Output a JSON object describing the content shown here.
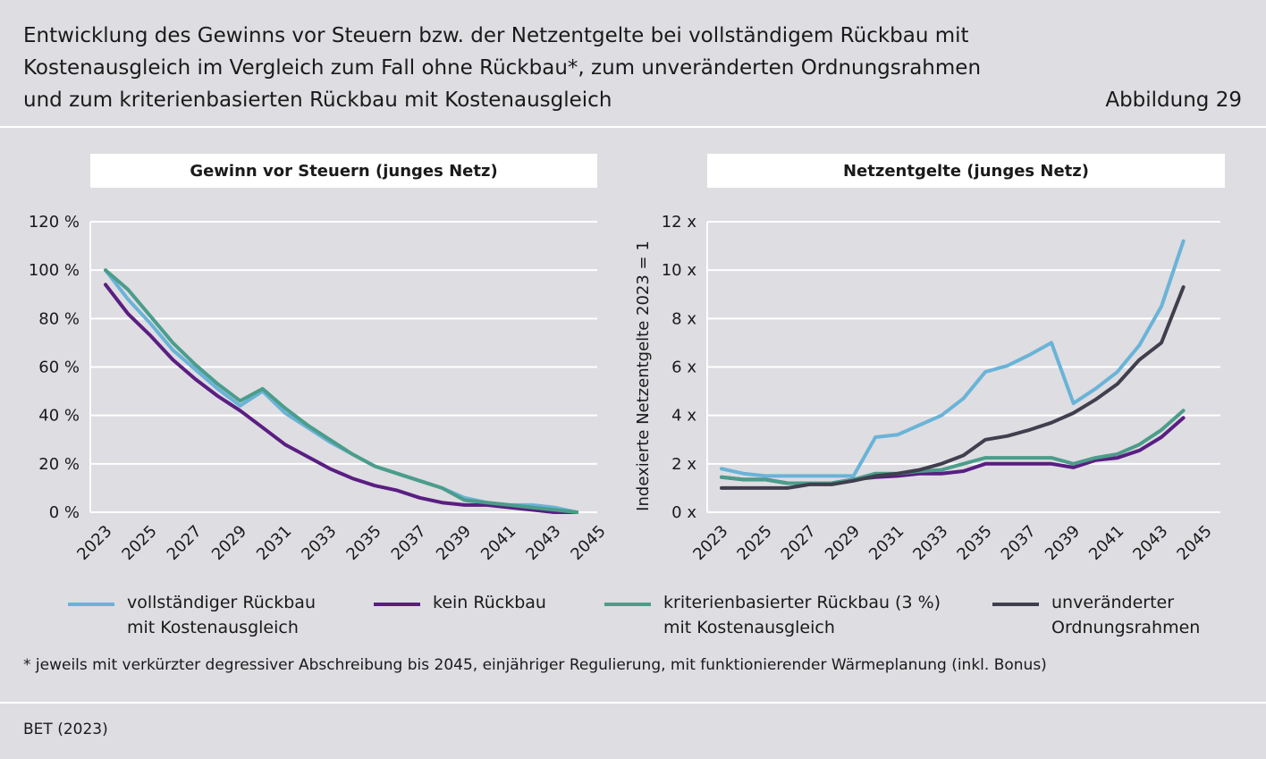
{
  "title_lines": [
    "Entwicklung des Gewinns vor Steuern bzw. der Netzentgelte bei vollständigem Rückbau mit",
    "Kostenausgleich im Vergleich zum Fall ohne Rückbau*, zum unveränderten Ordnungsrahmen",
    "und zum kriterienbasierten Rückbau mit Kostenausgleich"
  ],
  "figure_label": "Abbildung 29",
  "legend": [
    {
      "lines": [
        "vollständiger Rückbau",
        "mit Kostenausgleich"
      ],
      "color": "#6ab3d8"
    },
    {
      "lines": [
        "kein Rückbau"
      ],
      "color": "#5a1e82"
    },
    {
      "lines": [
        "kriterienbasierter Rückbau (3 %)",
        "mit Kostenausgleich"
      ],
      "color": "#4b9d8a"
    },
    {
      "lines": [
        "unveränderter",
        "Ordnungsrahmen"
      ],
      "color": "#3f3f4e"
    }
  ],
  "footnote": "* jeweils mit verkürzter degressiver Abschreibung bis 2045, einjähriger Regulierung, mit funktionierender Wärmeplanung (inkl. Bonus)",
  "source": "BET (2023)",
  "chart_data": [
    {
      "type": "line",
      "title": "Gewinn vor Steuern (junges Netz)",
      "xlabel": "",
      "ylabel": "",
      "x_ticks": [
        "2023",
        "2025",
        "2027",
        "2029",
        "2031",
        "2033",
        "2035",
        "2037",
        "2039",
        "2041",
        "2043",
        "2045"
      ],
      "y_ticks": [
        "0 %",
        "20 %",
        "40 %",
        "60 %",
        "80 %",
        "100 %",
        "120 %"
      ],
      "ylim": [
        0,
        120
      ],
      "xlim": [
        2023,
        2045
      ],
      "x": [
        2023,
        2024,
        2025,
        2026,
        2027,
        2028,
        2029,
        2030,
        2031,
        2032,
        2033,
        2034,
        2035,
        2036,
        2037,
        2038,
        2039,
        2040,
        2041,
        2042,
        2043,
        2044
      ],
      "series": [
        {
          "name": "vollständiger Rückbau mit Kostenausgleich",
          "color": "#6ab3d8",
          "values": [
            100,
            88,
            78,
            67,
            59,
            51,
            44,
            50,
            41,
            35,
            29,
            24,
            19,
            16,
            13,
            10,
            6,
            4,
            3,
            3,
            2,
            0
          ]
        },
        {
          "name": "kein Rückbau",
          "color": "#5a1e82",
          "values": [
            94,
            82,
            73,
            63,
            55,
            48,
            42,
            35,
            28,
            23,
            18,
            14,
            11,
            9,
            6,
            4,
            3,
            3,
            2,
            1,
            0,
            0
          ]
        },
        {
          "name": "kriterienbasierter Rückbau (3 %) mit Kostenausgleich",
          "color": "#4b9d8a",
          "values": [
            100,
            92,
            81,
            70,
            61,
            53,
            46,
            51,
            43,
            36,
            30,
            24,
            19,
            16,
            13,
            10,
            5,
            4,
            3,
            2,
            1,
            0
          ]
        }
      ]
    },
    {
      "type": "line",
      "title": "Netzentgelte (junges Netz)",
      "xlabel": "",
      "ylabel": "Indexierte Netzentgelte 2023 = 1",
      "x_ticks": [
        "2023",
        "2025",
        "2027",
        "2029",
        "2031",
        "2033",
        "2035",
        "2037",
        "2039",
        "2041",
        "2043",
        "2045"
      ],
      "y_ticks": [
        "0 x",
        "2 x",
        "4 x",
        "6 x",
        "8 x",
        "10 x",
        "12 x"
      ],
      "ylim": [
        0,
        12
      ],
      "xlim": [
        2023,
        2045
      ],
      "x": [
        2023,
        2024,
        2025,
        2026,
        2027,
        2028,
        2029,
        2030,
        2031,
        2032,
        2033,
        2034,
        2035,
        2036,
        2037,
        2038,
        2039,
        2040,
        2041,
        2042,
        2043,
        2044
      ],
      "series": [
        {
          "name": "vollständiger Rückbau mit Kostenausgleich",
          "color": "#6ab3d8",
          "values": [
            1.8,
            1.6,
            1.5,
            1.5,
            1.5,
            1.5,
            1.5,
            3.1,
            3.2,
            3.6,
            4.0,
            4.7,
            5.8,
            6.05,
            6.5,
            7.0,
            4.5,
            5.1,
            5.8,
            6.9,
            8.5,
            11.2
          ]
        },
        {
          "name": "kein Rückbau",
          "color": "#5a1e82",
          "values": [
            1.45,
            1.35,
            1.35,
            1.2,
            1.2,
            1.2,
            1.35,
            1.45,
            1.5,
            1.6,
            1.6,
            1.7,
            2.0,
            2.0,
            2.0,
            2.0,
            1.85,
            2.15,
            2.25,
            2.55,
            3.1,
            3.9
          ]
        },
        {
          "name": "kriterienbasierter Rückbau (3 %) mit Kostenausgleich",
          "color": "#4b9d8a",
          "values": [
            1.45,
            1.35,
            1.35,
            1.2,
            1.2,
            1.2,
            1.35,
            1.6,
            1.6,
            1.7,
            1.75,
            2.0,
            2.25,
            2.25,
            2.25,
            2.25,
            2.0,
            2.25,
            2.4,
            2.8,
            3.4,
            4.2
          ]
        },
        {
          "name": "unveränderter Ordnungsrahmen",
          "color": "#3f3f4e",
          "values": [
            1.0,
            1.0,
            1.0,
            1.0,
            1.15,
            1.15,
            1.3,
            1.5,
            1.6,
            1.75,
            2.0,
            2.35,
            3.0,
            3.15,
            3.4,
            3.7,
            4.1,
            4.65,
            5.3,
            6.3,
            7.0,
            9.3
          ]
        }
      ]
    }
  ]
}
